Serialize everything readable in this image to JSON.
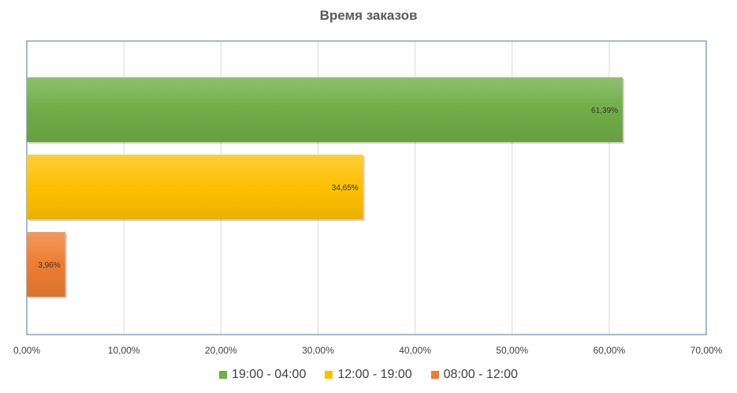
{
  "chart_data": {
    "type": "bar",
    "orientation": "horizontal",
    "title": "Время заказов",
    "xlabel": "",
    "ylabel": "",
    "xlim": [
      0,
      70
    ],
    "x_ticks": [
      "0,00%",
      "10,00%",
      "20,00%",
      "30,00%",
      "40,00%",
      "50,00%",
      "60,00%",
      "70,00%"
    ],
    "grid": true,
    "legend_position": "bottom",
    "series": [
      {
        "name": "19:00 - 04:00",
        "value": 61.39,
        "label": "61,39%",
        "color": "#70AD47"
      },
      {
        "name": "12:00 - 19:00",
        "value": 34.65,
        "label": "34,65%",
        "color": "#FFC000"
      },
      {
        "name": "08:00 - 12:00",
        "value": 3.96,
        "label": "3,96%",
        "color": "#ED7D31"
      }
    ]
  }
}
